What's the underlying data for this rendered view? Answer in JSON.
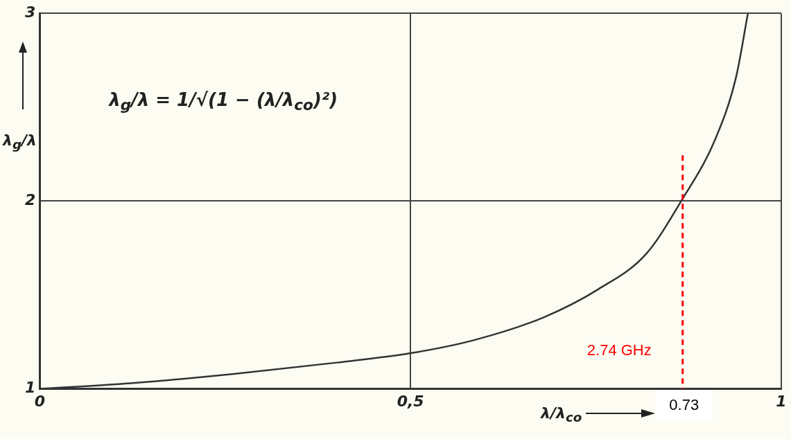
{
  "chart_data": {
    "type": "line",
    "xlabel": "λ/λ$_{co}$",
    "ylabel": "λ$_{g}$/λ",
    "annotations": [
      "λ$_{g}$/λ = 1/√(1 − (λ/λ$_{co}$)²)",
      {
        "text": "2.74 GHz",
        "x": 0.867,
        "y": 1.2
      },
      {
        "text": "0.73",
        "x": 0.867,
        "y": 1
      }
    ],
    "x": [
      0,
      0.122,
      0.262,
      0.401,
      0.5,
      0.586,
      0.679,
      0.753,
      0.818,
      0.865,
      0.911,
      0.939,
      0.955
    ],
    "series": [
      {
        "color": "#333333",
        "values": [
          1,
          1.03,
          1.08,
          1.14,
          1.19,
          1.26,
          1.38,
          1.53,
          1.72,
          2.0,
          2.33,
          2.66,
          3.0
        ]
      }
    ],
    "xlim": [
      0,
      1
    ],
    "ylim": [
      1,
      3
    ],
    "xticks": [
      0,
      {
        "value": 0.5,
        "label": "0,5"
      },
      1
    ],
    "yticks": [
      1,
      2,
      3
    ],
    "ref_lines": [
      {
        "axis": "x",
        "value": 0.867,
        "color": "#ff0000",
        "line_style": "dashed"
      }
    ],
    "grid": true,
    "legend": false,
    "marker": "none",
    "line_style": "solid"
  }
}
